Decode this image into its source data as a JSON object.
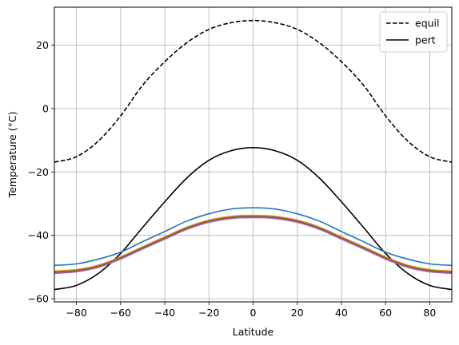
{
  "chart_data": {
    "type": "line",
    "xlabel": "Latitude",
    "ylabel": "Temperature (°C)",
    "xlim": [
      -90,
      90
    ],
    "ylim": [
      -61,
      32
    ],
    "xticks": [
      -80,
      -60,
      -40,
      -20,
      0,
      20,
      40,
      60,
      80
    ],
    "yticks": [
      -60,
      -40,
      -20,
      0,
      20
    ],
    "grid": true,
    "legend_position": "top-right",
    "legend": [
      {
        "label": "equil",
        "style": "dashed",
        "color": "#000000"
      },
      {
        "label": "pert",
        "style": "solid",
        "color": "#000000"
      }
    ],
    "x": [
      -90,
      -80,
      -70,
      -60,
      -50,
      -40,
      -30,
      -20,
      -10,
      0,
      10,
      20,
      30,
      40,
      50,
      60,
      70,
      80,
      90
    ],
    "series": [
      {
        "name": "equil",
        "style": "dashed",
        "color": "#000000",
        "values": [
          -16.9,
          -15.2,
          -10.2,
          -2.3,
          7.4,
          14.8,
          20.8,
          25.0,
          27.1,
          27.8,
          27.1,
          25.0,
          20.8,
          14.8,
          7.4,
          -2.3,
          -10.2,
          -15.2,
          -16.9
        ]
      },
      {
        "name": "pert",
        "style": "solid",
        "color": "#000000",
        "values": [
          -57.1,
          -55.8,
          -52.0,
          -45.7,
          -37.5,
          -29.4,
          -21.9,
          -16.3,
          -13.3,
          -12.3,
          -13.3,
          -16.3,
          -21.9,
          -29.4,
          -37.5,
          -45.7,
          -52.0,
          -55.8,
          -57.1
        ]
      },
      {
        "style": "solid",
        "color": "#1f77b4",
        "values": [
          -49.5,
          -49.0,
          -47.5,
          -45.3,
          -42.0,
          -38.8,
          -35.5,
          -33.2,
          -31.7,
          -31.3,
          -31.7,
          -33.2,
          -35.5,
          -38.8,
          -42.0,
          -45.3,
          -47.5,
          -49.0,
          -49.5
        ]
      },
      {
        "style": "solid",
        "color": "#ff7f0e",
        "values": [
          -51.3,
          -50.8,
          -49.4,
          -46.8,
          -43.6,
          -40.5,
          -37.4,
          -35.2,
          -34.0,
          -33.7,
          -34.0,
          -35.2,
          -37.4,
          -40.5,
          -43.6,
          -46.8,
          -49.4,
          -50.8,
          -51.3
        ]
      },
      {
        "style": "solid",
        "color": "#2ca02c",
        "values": [
          -51.6,
          -51.1,
          -49.7,
          -47.1,
          -43.9,
          -40.8,
          -37.7,
          -35.5,
          -34.3,
          -34.0,
          -34.3,
          -35.5,
          -37.7,
          -40.8,
          -43.9,
          -47.1,
          -49.7,
          -51.1,
          -51.6
        ]
      },
      {
        "style": "solid",
        "color": "#d62728",
        "values": [
          -51.8,
          -51.3,
          -49.9,
          -47.3,
          -44.1,
          -41.0,
          -37.9,
          -35.7,
          -34.5,
          -34.2,
          -34.5,
          -35.7,
          -37.9,
          -41.0,
          -44.1,
          -47.3,
          -49.9,
          -51.3,
          -51.8
        ]
      },
      {
        "style": "solid",
        "color": "#9467bd",
        "values": [
          -52.0,
          -51.5,
          -50.1,
          -47.5,
          -44.3,
          -41.2,
          -38.1,
          -35.9,
          -34.7,
          -34.4,
          -34.7,
          -35.9,
          -38.1,
          -41.2,
          -44.3,
          -47.5,
          -50.1,
          -51.5,
          -52.0
        ]
      }
    ]
  }
}
